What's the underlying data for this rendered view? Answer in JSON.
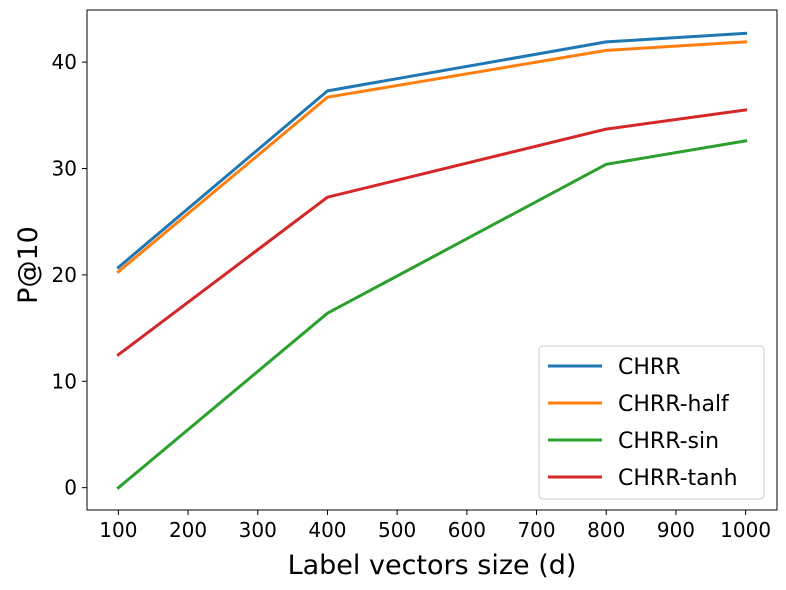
{
  "chart_data": {
    "type": "line",
    "title": "",
    "xlabel": "Label vectors size (d)",
    "ylabel": "P@10",
    "x": [
      100,
      400,
      800,
      1000
    ],
    "xlim": [
      55,
      1045
    ],
    "ylim": [
      -2.1,
      44.9
    ],
    "xticks": [
      100,
      200,
      300,
      400,
      500,
      600,
      700,
      800,
      900,
      1000
    ],
    "xtick_labels": [
      "100",
      "200",
      "300",
      "400",
      "500",
      "600",
      "700",
      "800",
      "900",
      "1000"
    ],
    "yticks": [
      0,
      10,
      20,
      30,
      40
    ],
    "ytick_labels": [
      "0",
      "10",
      "20",
      "30",
      "40"
    ],
    "grid": false,
    "legend_position": "lower-right",
    "series": [
      {
        "name": "CHRR",
        "color": "#1f77b4",
        "values": [
          20.7,
          37.3,
          41.9,
          42.7
        ]
      },
      {
        "name": "CHRR-half",
        "color": "#ff7f0e",
        "values": [
          20.3,
          36.7,
          41.1,
          41.9
        ]
      },
      {
        "name": "CHRR-sin",
        "color": "#2ca02c",
        "values": [
          0.0,
          16.4,
          30.4,
          32.6
        ]
      },
      {
        "name": "CHRR-tanh",
        "color": "#d62728",
        "values": [
          12.5,
          27.3,
          33.7,
          35.5
        ]
      }
    ]
  }
}
